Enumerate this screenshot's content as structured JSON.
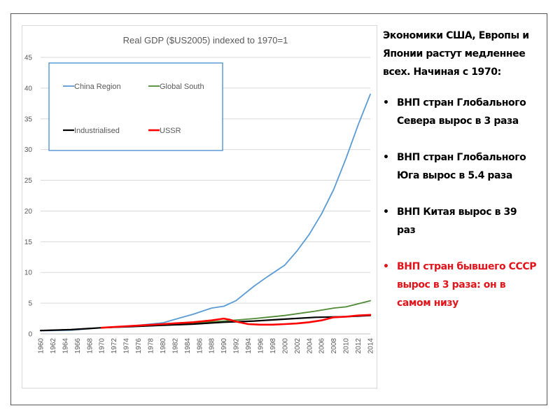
{
  "chart_data": {
    "type": "line",
    "title": "Real GDP ($US2005) indexed to 1970=1",
    "xlabel": "",
    "ylabel": "",
    "ylim": [
      0,
      45
    ],
    "yticks": [
      0,
      5,
      10,
      15,
      20,
      25,
      30,
      35,
      40,
      45
    ],
    "xlim": [
      1960,
      2014
    ],
    "xticks": [
      1960,
      1962,
      1964,
      1966,
      1968,
      1970,
      1972,
      1974,
      1976,
      1978,
      1980,
      1982,
      1984,
      1986,
      1988,
      1990,
      1992,
      1994,
      1996,
      1998,
      2000,
      2002,
      2004,
      2006,
      2008,
      2010,
      2012,
      2014
    ],
    "grid": true,
    "legend_position": "top-left",
    "series": [
      {
        "name": "China Region",
        "color": "#5b9bd5",
        "width": 1.8,
        "x": [
          1960,
          1965,
          1970,
          1975,
          1980,
          1985,
          1988,
          1990,
          1992,
          1995,
          1997,
          2000,
          2002,
          2004,
          2006,
          2008,
          2010,
          2012,
          2014
        ],
        "y": [
          0.5,
          0.6,
          1.0,
          1.3,
          1.8,
          3.2,
          4.2,
          4.5,
          5.4,
          7.8,
          9.2,
          11.2,
          13.5,
          16.2,
          19.5,
          23.5,
          28.5,
          34.0,
          39.0
        ]
      },
      {
        "name": "Global South",
        "color": "#4e8a33",
        "width": 1.8,
        "x": [
          1960,
          1965,
          1970,
          1975,
          1980,
          1985,
          1990,
          1995,
          2000,
          2005,
          2008,
          2010,
          2014
        ],
        "y": [
          0.55,
          0.7,
          1.0,
          1.3,
          1.6,
          1.8,
          2.1,
          2.5,
          3.0,
          3.7,
          4.2,
          4.4,
          5.4
        ]
      },
      {
        "name": "Industrialised",
        "color": "#000000",
        "width": 2.2,
        "x": [
          1960,
          1965,
          1970,
          1975,
          1980,
          1985,
          1990,
          1995,
          2000,
          2005,
          2010,
          2014
        ],
        "y": [
          0.55,
          0.7,
          1.0,
          1.2,
          1.4,
          1.6,
          1.9,
          2.1,
          2.4,
          2.7,
          2.8,
          3.0
        ]
      },
      {
        "name": "USSR",
        "color": "#ff0000",
        "width": 2.6,
        "x": [
          1970,
          1975,
          1980,
          1985,
          1988,
          1990,
          1991,
          1992,
          1994,
          1996,
          1998,
          2000,
          2002,
          2004,
          2006,
          2008,
          2010,
          2012,
          2014
        ],
        "y": [
          1.0,
          1.3,
          1.6,
          1.9,
          2.2,
          2.5,
          2.3,
          2.0,
          1.6,
          1.5,
          1.5,
          1.6,
          1.7,
          1.9,
          2.2,
          2.7,
          2.8,
          3.0,
          3.1
        ]
      }
    ]
  },
  "text": {
    "intro": "Экономики США, Европы и Японии растут медленнее всех. Начиная с 1970:",
    "bullets": [
      {
        "text": "ВНП стран Глобального Севера вырос в 3 раза",
        "color": "#000000"
      },
      {
        "text": "ВНП стран Глобального Юга вырос в 5.4 раза",
        "color": "#000000"
      },
      {
        "text": "ВНП Китая вырос в 39 раз",
        "color": "#000000"
      },
      {
        "text": "ВНП стран бывшего СССР вырос в 3 раза: он в самом низу",
        "color": "#e0141a"
      }
    ],
    "bullet_symbol": "•"
  }
}
